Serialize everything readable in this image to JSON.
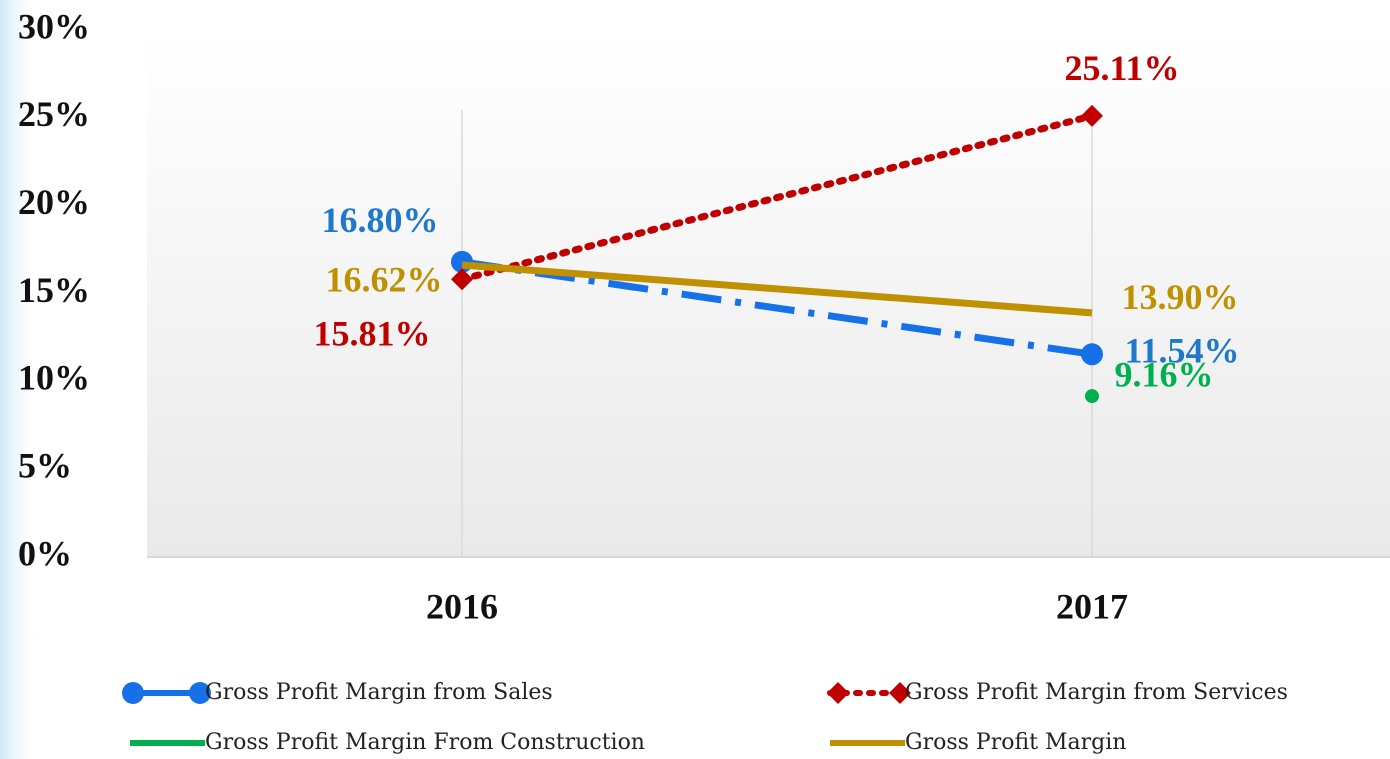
{
  "chart_data": {
    "type": "line",
    "categories": [
      "2016",
      "2017"
    ],
    "series": [
      {
        "name": "Gross Profit Margin from Sales",
        "color": "#1670e8",
        "label_color": "#1f78c8",
        "linestyle": "dashdot",
        "marker": "circle",
        "values": [
          16.8,
          11.54
        ],
        "value_labels": [
          "16.80%",
          "11.54%"
        ]
      },
      {
        "name": "Gross Profit Margin from Services",
        "color": "#c00000",
        "label_color": "#c00000",
        "linestyle": "dotted",
        "marker": "diamond",
        "values": [
          15.81,
          25.11
        ],
        "value_labels": [
          "15.81%",
          "25.11%"
        ]
      },
      {
        "name": "Gross Profit Margin From Construction",
        "color": "#00b050",
        "label_color": "#00b050",
        "linestyle": "solid",
        "marker": "dot",
        "values": [
          null,
          9.16
        ],
        "value_labels": [
          null,
          "9.16%"
        ]
      },
      {
        "name": "Gross Profit Margin",
        "color": "#bf9000",
        "label_color": "#bf9000",
        "linestyle": "solid",
        "marker": "none",
        "values": [
          16.62,
          13.9
        ],
        "value_labels": [
          "16.62%",
          "13.90%"
        ]
      }
    ],
    "ylim": [
      0,
      30
    ],
    "yticks": [
      {
        "value": 0,
        "label": "0%"
      },
      {
        "value": 5,
        "label": "5%"
      },
      {
        "value": 10,
        "label": "10%"
      },
      {
        "value": 15,
        "label": "15%"
      },
      {
        "value": 20,
        "label": "20%"
      },
      {
        "value": 25,
        "label": "25%"
      },
      {
        "value": 30,
        "label": "30%"
      }
    ],
    "grid": "vertical",
    "legend": "bottom"
  }
}
